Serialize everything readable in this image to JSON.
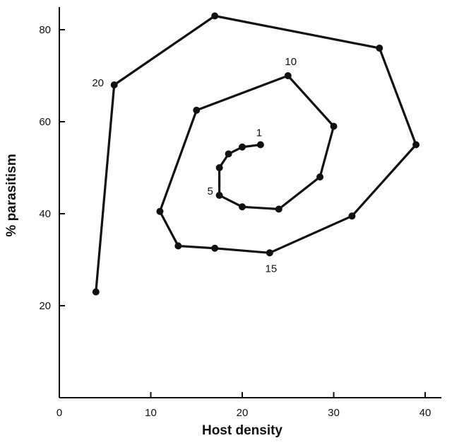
{
  "chart_data": {
    "type": "line",
    "xlabel": "Host density",
    "ylabel": "% parasitism",
    "xlim": [
      0,
      44
    ],
    "ylim": [
      0,
      86
    ],
    "xticks": [
      0,
      10,
      20,
      30,
      40
    ],
    "yticks": [
      20,
      40,
      60,
      80
    ],
    "grid": false,
    "series": [
      {
        "x": [
          22,
          20,
          18.5,
          17.5,
          17.5,
          20,
          24,
          28.5,
          30,
          25,
          15,
          11,
          13,
          17,
          23,
          32,
          39,
          35,
          17,
          6,
          4
        ],
        "y": [
          55,
          54.5,
          53,
          50,
          44,
          41.5,
          41,
          48,
          59,
          70,
          62.5,
          40.5,
          33,
          32.5,
          31.5,
          39.5,
          55,
          76,
          83,
          68,
          23
        ]
      }
    ],
    "point_labels": [
      {
        "text": "1",
        "index": 0
      },
      {
        "text": "5",
        "index": 4
      },
      {
        "text": "10",
        "index": 9
      },
      {
        "text": "15",
        "index": 14
      },
      {
        "text": "20",
        "index": 19
      }
    ]
  }
}
